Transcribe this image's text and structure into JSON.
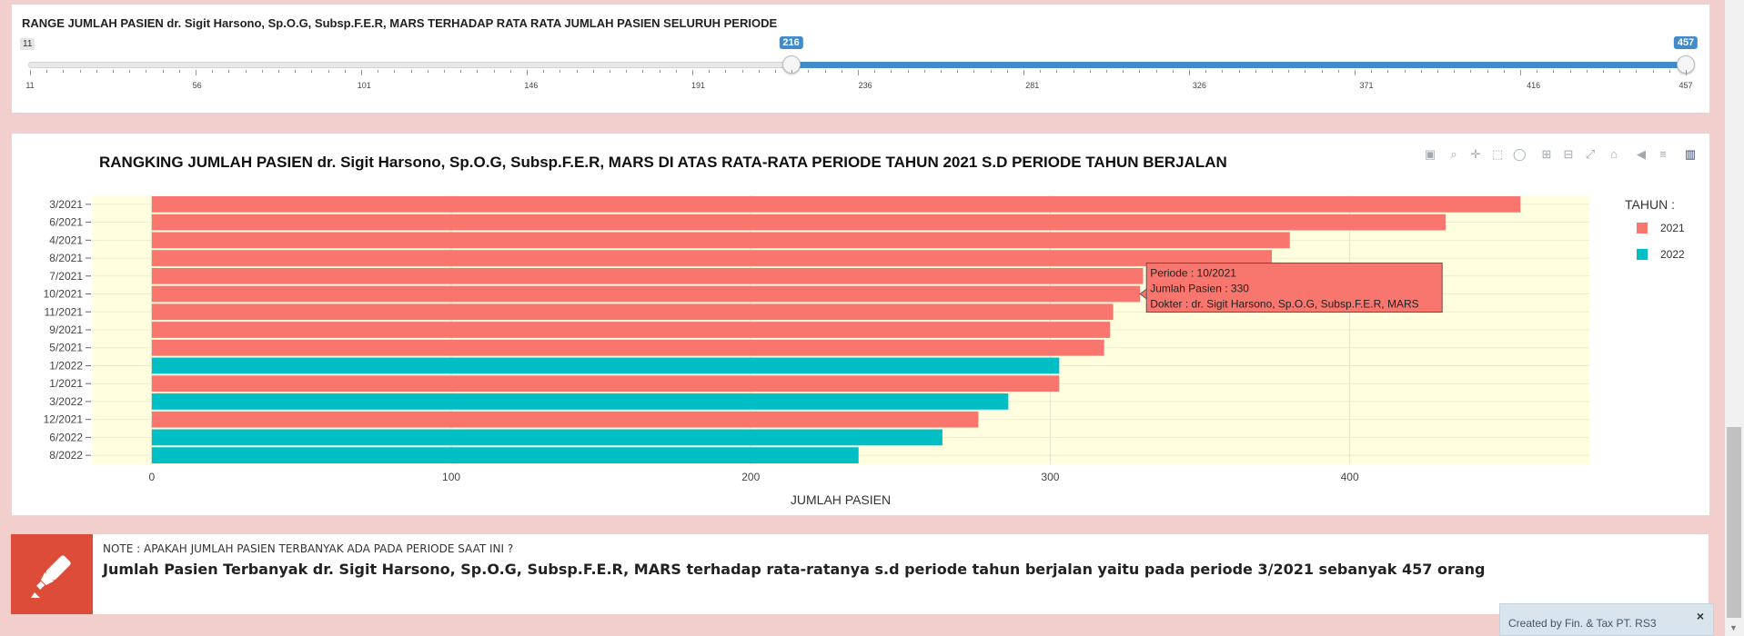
{
  "slider": {
    "title": "RANGE JUMLAH PASIEN dr. Sigit Harsono, Sp.O.G, Subsp.F.E.R, MARS TERHADAP RATA RATA JUMLAH PASIEN SELURUH PERIODE",
    "min": 11,
    "max": 457,
    "value_from": 216,
    "value_to": 457,
    "min_label": "11",
    "from_label": "216",
    "to_label": "457",
    "tick_labels": [
      "11",
      "56",
      "101",
      "146",
      "191",
      "236",
      "281",
      "326",
      "371",
      "416",
      "457"
    ],
    "bar_color": "#428bca"
  },
  "chart_data": {
    "type": "bar",
    "orientation": "horizontal",
    "title": "RANGKING JUMLAH PASIEN dr. Sigit Harsono, Sp.O.G, Subsp.F.E.R, MARS DI ATAS RATA-RATA PERIODE TAHUN 2021 S.D PERIODE TAHUN BERJALAN",
    "xlabel": "JUMLAH PASIEN",
    "ylabel": "",
    "xlim": [
      -20,
      480
    ],
    "x_ticks": [
      0,
      100,
      200,
      300,
      400
    ],
    "x_tick_labels": [
      "0",
      "100",
      "200",
      "300",
      "400"
    ],
    "grid": true,
    "plot_background": "#ffffe0",
    "legend_title": "TAHUN :",
    "legend_position": "right",
    "series": [
      {
        "name": "2021",
        "color": "#f8766d"
      },
      {
        "name": "2022",
        "color": "#00bfc4"
      }
    ],
    "bars": [
      {
        "category": "3/2021",
        "value": 457,
        "series": "2021"
      },
      {
        "category": "6/2021",
        "value": 432,
        "series": "2021"
      },
      {
        "category": "4/2021",
        "value": 380,
        "series": "2021"
      },
      {
        "category": "8/2021",
        "value": 374,
        "series": "2021"
      },
      {
        "category": "7/2021",
        "value": 331,
        "series": "2021"
      },
      {
        "category": "10/2021",
        "value": 330,
        "series": "2021"
      },
      {
        "category": "11/2021",
        "value": 321,
        "series": "2021"
      },
      {
        "category": "9/2021",
        "value": 320,
        "series": "2021"
      },
      {
        "category": "5/2021",
        "value": 318,
        "series": "2021"
      },
      {
        "category": "1/2022",
        "value": 303,
        "series": "2022"
      },
      {
        "category": "1/2021",
        "value": 303,
        "series": "2021"
      },
      {
        "category": "3/2022",
        "value": 286,
        "series": "2022"
      },
      {
        "category": "12/2021",
        "value": 276,
        "series": "2021"
      },
      {
        "category": "6/2022",
        "value": 264,
        "series": "2022"
      },
      {
        "category": "8/2022",
        "value": 236,
        "series": "2022"
      }
    ],
    "tooltip": {
      "category": "10/2021",
      "lines": [
        "Periode : 10/2021",
        " Jumlah Pasien : 330",
        "Dokter : dr. Sigit Harsono, Sp.O.G, Subsp.F.E.R, MARS"
      ]
    }
  },
  "toolbar": {
    "icons": [
      "camera-icon",
      "zoom-icon",
      "pan-icon",
      "box-select-icon",
      "lasso-select-icon",
      "zoom-in-icon",
      "zoom-out-icon",
      "autoscale-icon",
      "reset-axes-icon",
      "hover-closest-icon",
      "hover-compare-icon",
      "plotly-logo-icon"
    ]
  },
  "note": {
    "label": "NOTE : APAKAH JUMLAH PASIEN TERBANYAK ADA PADA PERIODE SAAT INI ?",
    "text": "Jumlah Pasien Terbanyak dr. Sigit Harsono, Sp.O.G, Subsp.F.E.R, MARS terhadap rata-ratanya s.d periode tahun berjalan yaitu pada periode 3/2021 sebanyak 457 orang",
    "icon": "highlighter-icon",
    "icon_color": "#dd4b39"
  },
  "footer": {
    "text": "Created by Fin. & Tax PT. RS3",
    "close": "×"
  }
}
